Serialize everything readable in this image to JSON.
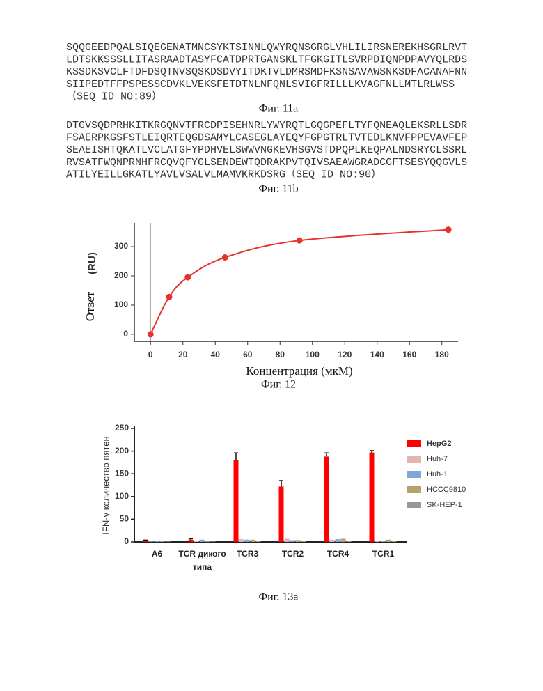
{
  "fig11a": {
    "lines": [
      "SQQGEEDPQALSIQEGENATMNCSYKTSINNLQWYRQNSGRGLVHLILIRSNEREKHSGRLRVT",
      "LDTSKKSSSLLITASRAADTASYFCATDPRTGANSKLTFGKGITLSVRPDIQNPDPAVYQLRDS",
      "KSSDKSVCLFTDFDSQTNVSQSKDSDVYITDKTVLDMRSMDFKSNSAVAWSNKSDFACANAFNN",
      "SIIPEDTFFPSPESSCDVKLVEKSFETDTNLNFQNLSVIGFRILLLKVAGFNLLMTLRLWSS",
      "（SEQ ID NO:89）"
    ],
    "caption": "Фиг. 11a"
  },
  "fig11b": {
    "lines": [
      "DTGVSQDPRHKITKRGQNVTFRCDPISEHNRLYWYRQTLGQGPEFLTYFQNEAQLEKSRLLSDR",
      "FSAERPKGSFSTLEIQRTEQGDSAMYLCASEGLAYEQYFGPGTRLTVTEDLKNVFPPEVAVFEP",
      "SEAEISHTQKATLVCLATGFYPDHVELSWWVNGKEVHSGVSTDPQPLKEQPALNDSRYCLSSRL",
      "RVSATFWQNPRNHFRCQVQFYGLSENDEWTQDRAKPVTQIVSAEAWGRADCGFTSESYQQGVLS",
      "ATILYEILLGKATLYAVLVSALVLMAMVKRKDSRG（SEQ ID NO:90）"
    ],
    "caption": "Фиг. 11b"
  },
  "chart_data": [
    {
      "type": "line",
      "caption": "Фиг. 12",
      "xlabel": "Концентрация (мкМ)",
      "ylabel": "Ответ",
      "yunit": "(RU)",
      "x": [
        0,
        11.5,
        23,
        46,
        92,
        184
      ],
      "values": [
        0,
        128,
        195,
        263,
        321,
        358
      ],
      "color": "#e8302c",
      "xlim": [
        -10,
        190
      ],
      "xticks": [
        0,
        20,
        40,
        60,
        80,
        100,
        120,
        140,
        160,
        180
      ],
      "ylim": [
        -24,
        381
      ],
      "yticks": [
        0,
        100,
        200,
        300
      ]
    },
    {
      "type": "bar",
      "caption": "Фиг. 13a",
      "ylabel": "IFN-γ количество пятен",
      "categories": [
        "A6",
        "TCR дикого типа",
        "TCR3",
        "TCR2",
        "TCR4",
        "TCR1"
      ],
      "series": [
        {
          "name": "HepG2",
          "color": "#ff0000",
          "values": [
            3,
            5,
            180,
            122,
            188,
            197
          ],
          "errors": [
            1,
            2,
            16,
            13,
            8,
            4
          ]
        },
        {
          "name": "Huh-7",
          "color": "#e6b3b3",
          "values": [
            1,
            3,
            6,
            7,
            5,
            3
          ]
        },
        {
          "name": "Huh-1",
          "color": "#7fa7d9",
          "values": [
            3,
            5,
            5,
            4,
            6,
            2
          ]
        },
        {
          "name": "HCCC9810",
          "color": "#b2a46a",
          "values": [
            2,
            3,
            5,
            4,
            7,
            5
          ]
        },
        {
          "name": "SK-HEP-1",
          "color": "#999999",
          "values": [
            1,
            1,
            2,
            2,
            3,
            2
          ]
        }
      ],
      "ylim": [
        0,
        250
      ],
      "yticks": [
        0,
        50,
        100,
        150,
        200,
        250
      ],
      "legend": "right"
    }
  ]
}
